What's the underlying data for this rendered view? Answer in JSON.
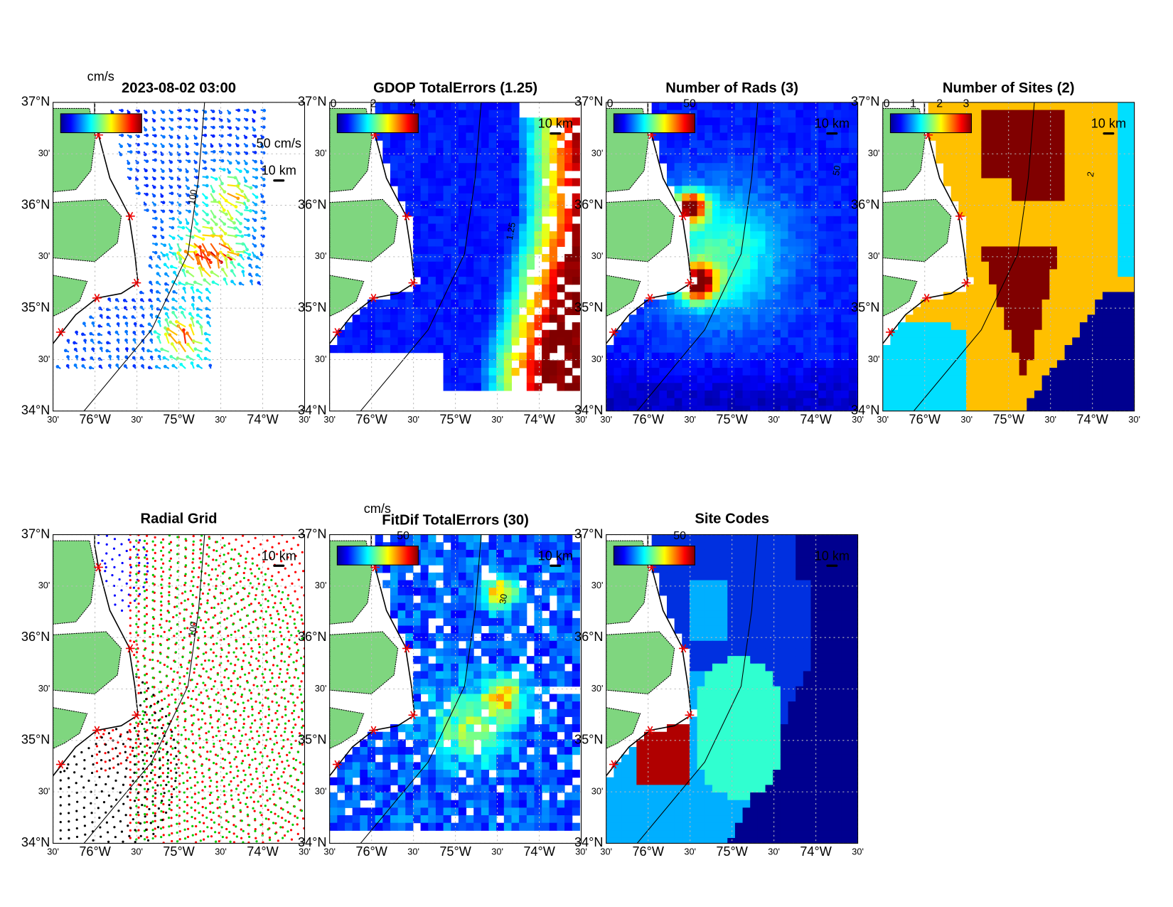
{
  "axes": {
    "lat_labels": [
      "37°N",
      "30'",
      "36°N",
      "30'",
      "35°N",
      "30'",
      "34°N"
    ],
    "lon_labels": [
      "30'",
      "76°W",
      "30'",
      "75°W",
      "30'",
      "74°W",
      "30'"
    ]
  },
  "panels": [
    {
      "title": "2023-08-02 03:00",
      "colorbar_unit": "cm/s",
      "scale_labels": [
        "50 cm/s",
        "10 km"
      ],
      "contour_label": "100"
    },
    {
      "title": "GDOP TotalErrors (1.25)",
      "colorbar_ticks": [
        0,
        2,
        4
      ],
      "scale_labels": [
        "10 km"
      ],
      "contour_label": "1.25"
    },
    {
      "title": "Number of Rads (3)",
      "colorbar_ticks": [
        0,
        50
      ],
      "scale_labels": [
        "10 km"
      ],
      "contour_label": "50"
    },
    {
      "title": "Number of Sites (2)",
      "colorbar_ticks": [
        0,
        1,
        2,
        3
      ],
      "scale_labels": [
        "10 km"
      ],
      "contour_label": "2"
    },
    {
      "title": "Radial Grid",
      "scale_labels": [
        "10 km"
      ],
      "contour_label": "100"
    },
    {
      "title": "FitDif TotalErrors (30)",
      "colorbar_unit": "cm/s",
      "colorbar_ticks": [
        50
      ],
      "scale_labels": [
        "10 km"
      ],
      "contour_label": "30"
    },
    {
      "title": "Site Codes",
      "colorbar_ticks": [
        50
      ],
      "scale_labels": [
        "10 km"
      ]
    }
  ]
}
